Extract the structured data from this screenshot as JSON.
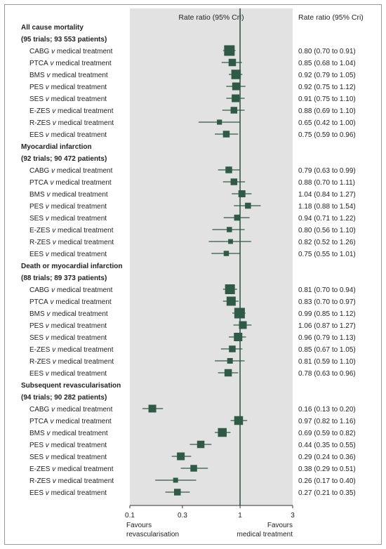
{
  "header": {
    "plot_label": "Rate ratio (95% CrI)",
    "value_label": "Rate ratio (95% Cri)"
  },
  "footer": {
    "left_line1": "Favours",
    "left_line2": "revascularisation",
    "right_line1": "Favours",
    "right_line2": "medical treatment"
  },
  "colors": {
    "panel": "#e2e2e2",
    "marker": "#2f5a46",
    "ref_line": "#2f5a46"
  },
  "chart_data": {
    "type": "forest",
    "x_scale": "log",
    "xlim": [
      0.1,
      3
    ],
    "x_ticks": [
      0.1,
      0.3,
      1,
      3
    ],
    "x_tick_labels": [
      "0.1",
      "0.3",
      "1",
      "3"
    ],
    "reference_value": 1,
    "groups": [
      {
        "title_line1": "All cause mortality",
        "title_line2": "(95 trials; 93 553 patients)",
        "rows": [
          {
            "a": "CABG",
            "b": "medical treatment",
            "est": 0.8,
            "lo": 0.7,
            "hi": 0.91,
            "w": 1.0,
            "text": "0.80 (0.70 to 0.91)"
          },
          {
            "a": "PTCA",
            "b": "medical treatment",
            "est": 0.85,
            "lo": 0.68,
            "hi": 1.04,
            "w": 0.55,
            "text": "0.85 (0.68 to 1.04)"
          },
          {
            "a": "BMS",
            "b": "medical treatment",
            "est": 0.92,
            "lo": 0.79,
            "hi": 1.05,
            "w": 0.85,
            "text": "0.92 (0.79 to 1.05)"
          },
          {
            "a": "PES",
            "b": "medical treatment",
            "est": 0.92,
            "lo": 0.75,
            "hi": 1.12,
            "w": 0.6,
            "text": "0.92 (0.75 to 1.12)"
          },
          {
            "a": "SES",
            "b": "medical treatment",
            "est": 0.91,
            "lo": 0.75,
            "hi": 1.1,
            "w": 0.6,
            "text": "0.91 (0.75 to 1.10)"
          },
          {
            "a": "E-ZES",
            "b": "medical treatment",
            "est": 0.88,
            "lo": 0.69,
            "hi": 1.1,
            "w": 0.45,
            "text": "0.88 (0.69 to 1.10)"
          },
          {
            "a": "R-ZES",
            "b": "medical treatment",
            "est": 0.65,
            "lo": 0.42,
            "hi": 1.0,
            "w": 0.22,
            "text": "0.65 (0.42 to 1.00)"
          },
          {
            "a": "EES",
            "b": "medical treatment",
            "est": 0.75,
            "lo": 0.59,
            "hi": 0.96,
            "w": 0.45,
            "text": "0.75 (0.59 to 0.96)"
          }
        ]
      },
      {
        "title_line1": "Myocardial infarction",
        "title_line2": "(92 trials; 90 472 patients)",
        "rows": [
          {
            "a": "CABG",
            "b": "medical treatment",
            "est": 0.79,
            "lo": 0.63,
            "hi": 0.99,
            "w": 0.45,
            "text": "0.79 (0.63 to 0.99)"
          },
          {
            "a": "PTCA",
            "b": "medical treatment",
            "est": 0.88,
            "lo": 0.7,
            "hi": 1.11,
            "w": 0.45,
            "text": "0.88 (0.70 to 1.11)"
          },
          {
            "a": "BMS",
            "b": "medical treatment",
            "est": 1.04,
            "lo": 0.84,
            "hi": 1.27,
            "w": 0.5,
            "text": "1.04 (0.84 to 1.27)"
          },
          {
            "a": "PES",
            "b": "medical treatment",
            "est": 1.18,
            "lo": 0.88,
            "hi": 1.54,
            "w": 0.35,
            "text": "1.18 (0.88 to 1.54)"
          },
          {
            "a": "SES",
            "b": "medical treatment",
            "est": 0.94,
            "lo": 0.71,
            "hi": 1.22,
            "w": 0.35,
            "text": "0.94 (0.71 to 1.22)"
          },
          {
            "a": "E-ZES",
            "b": "medical treatment",
            "est": 0.8,
            "lo": 0.56,
            "hi": 1.1,
            "w": 0.25,
            "text": "0.80 (0.56 to 1.10)"
          },
          {
            "a": "R-ZES",
            "b": "medical treatment",
            "est": 0.82,
            "lo": 0.52,
            "hi": 1.26,
            "w": 0.18,
            "text": "0.82 (0.52 to 1.26)"
          },
          {
            "a": "EES",
            "b": "medical treatment",
            "est": 0.75,
            "lo": 0.55,
            "hi": 1.01,
            "w": 0.25,
            "text": "0.75 (0.55 to 1.01)"
          }
        ]
      },
      {
        "title_line1": "Death or myocardial infarction",
        "title_line2": "(88 trials; 89 373 patients)",
        "rows": [
          {
            "a": "CABG",
            "b": "medical treatment",
            "est": 0.81,
            "lo": 0.7,
            "hi": 0.94,
            "w": 0.9,
            "text": "0.81 (0.70 to 0.94)"
          },
          {
            "a": "PTCA",
            "b": "medical treatment",
            "est": 0.83,
            "lo": 0.7,
            "hi": 0.97,
            "w": 0.8,
            "text": "0.83 (0.70 to 0.97)"
          },
          {
            "a": "BMS",
            "b": "medical treatment",
            "est": 0.99,
            "lo": 0.85,
            "hi": 1.12,
            "w": 1.0,
            "text": "0.99 (0.85 to 1.12)"
          },
          {
            "a": "PES",
            "b": "medical treatment",
            "est": 1.06,
            "lo": 0.87,
            "hi": 1.27,
            "w": 0.6,
            "text": "1.06 (0.87 to 1.27)"
          },
          {
            "a": "SES",
            "b": "medical treatment",
            "est": 0.96,
            "lo": 0.79,
            "hi": 1.13,
            "w": 0.7,
            "text": "0.96 (0.79 to 1.13)"
          },
          {
            "a": "E-ZES",
            "b": "medical treatment",
            "est": 0.85,
            "lo": 0.67,
            "hi": 1.05,
            "w": 0.45,
            "text": "0.85 (0.67 to 1.05)"
          },
          {
            "a": "R-ZES",
            "b": "medical treatment",
            "est": 0.81,
            "lo": 0.59,
            "hi": 1.1,
            "w": 0.3,
            "text": "0.81 (0.59 to 1.10)"
          },
          {
            "a": "EES",
            "b": "medical treatment",
            "est": 0.78,
            "lo": 0.63,
            "hi": 0.96,
            "w": 0.55,
            "text": "0.78 (0.63 to 0.96)"
          }
        ]
      },
      {
        "title_line1": "Subsequent revascularisation",
        "title_line2": "(94 trials; 90 282 patients)",
        "rows": [
          {
            "a": "CABG",
            "b": "medical treatment",
            "est": 0.16,
            "lo": 0.13,
            "hi": 0.2,
            "w": 0.6,
            "text": "0.16 (0.13 to 0.20)"
          },
          {
            "a": "PTCA",
            "b": "medical treatment",
            "est": 0.97,
            "lo": 0.82,
            "hi": 1.16,
            "w": 0.75,
            "text": "0.97 (0.82 to 1.16)"
          },
          {
            "a": "BMS",
            "b": "medical treatment",
            "est": 0.69,
            "lo": 0.59,
            "hi": 0.82,
            "w": 0.75,
            "text": "0.69 (0.59 to 0.82)"
          },
          {
            "a": "PES",
            "b": "medical treatment",
            "est": 0.44,
            "lo": 0.35,
            "hi": 0.55,
            "w": 0.55,
            "text": "0.44 (0.35 to 0.55)"
          },
          {
            "a": "SES",
            "b": "medical treatment",
            "est": 0.29,
            "lo": 0.24,
            "hi": 0.36,
            "w": 0.6,
            "text": "0.29 (0.24 to 0.36)"
          },
          {
            "a": "E-ZES",
            "b": "medical treatment",
            "est": 0.38,
            "lo": 0.29,
            "hi": 0.51,
            "w": 0.45,
            "text": "0.38 (0.29 to 0.51)"
          },
          {
            "a": "R-ZES",
            "b": "medical treatment",
            "est": 0.26,
            "lo": 0.17,
            "hi": 0.4,
            "w": 0.2,
            "text": "0.26 (0.17 to 0.40)"
          },
          {
            "a": "EES",
            "b": "medical treatment",
            "est": 0.27,
            "lo": 0.21,
            "hi": 0.35,
            "w": 0.45,
            "text": "0.27 (0.21 to 0.35)"
          }
        ]
      }
    ]
  }
}
